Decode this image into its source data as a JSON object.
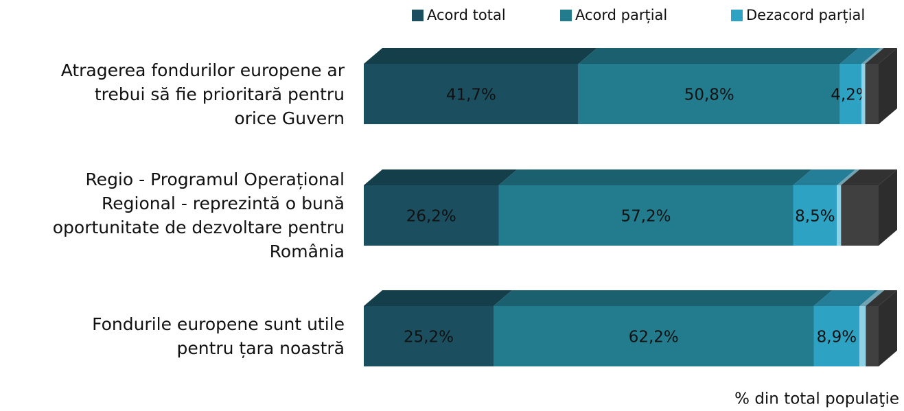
{
  "chart_data": {
    "type": "bar3d_stacked_horizontal",
    "categories": [
      "Atragerea fondurilor europene ar\ntrebui să fie prioritară pentru\norice Guvern",
      "Regio - Programul Operațional\nRegional - reprezintă o bună\noportunitate de dezvoltare pentru\nRomânia",
      "Fondurile europene sunt utile\npentru țara noastră"
    ],
    "xlim": [
      0,
      100
    ],
    "series": [
      {
        "name": "Acord total",
        "color": "#1b4f60",
        "values": [
          41.7,
          26.2,
          25.2
        ],
        "value_labels": [
          "41,7%",
          "26,2%",
          "25,2%"
        ]
      },
      {
        "name": "Acord parțial",
        "color": "#237b8e",
        "values": [
          50.8,
          57.2,
          62.2
        ],
        "value_labels": [
          "50,8%",
          "57,2%",
          "62,2%"
        ]
      },
      {
        "name": "Dezacord parțial",
        "color": "#2ea2c2",
        "values": [
          4.2,
          8.5,
          8.9
        ],
        "value_labels": [
          "4,2%",
          "8,5%",
          "8,9%"
        ]
      },
      {
        "color": "#8fd2e6",
        "values": [
          0.7,
          0.8,
          1.2
        ]
      },
      {
        "color": "#404040",
        "values": [
          2.6,
          7.3,
          2.5
        ]
      }
    ],
    "note": "% din total populaţie"
  }
}
